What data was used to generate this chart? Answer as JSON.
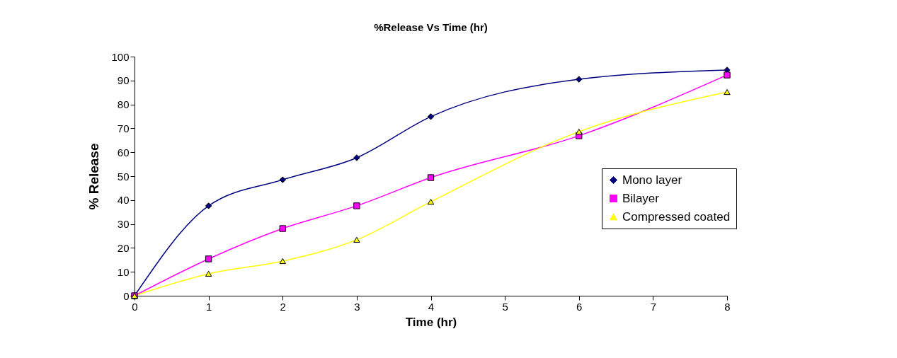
{
  "chart_data": {
    "type": "line",
    "title": "%Release Vs Time (hr)",
    "xlabel": "Time (hr)",
    "ylabel": "% Release",
    "x": [
      0,
      1,
      2,
      3,
      4,
      6,
      8
    ],
    "series": [
      {
        "name": "Mono layer",
        "color": "#000080",
        "marker": "diamond",
        "values": [
          0,
          37.6,
          48.5,
          57.7,
          74.9,
          90.5,
          94.4
        ]
      },
      {
        "name": "Bilayer",
        "color": "#ff00ff",
        "marker": "square",
        "values": [
          0,
          15.4,
          28.1,
          37.6,
          49.4,
          66.9,
          92.3
        ]
      },
      {
        "name": "Compressed coated",
        "color": "#ffff00",
        "marker": "triangle",
        "values": [
          0,
          9.2,
          14.5,
          23.4,
          39.3,
          68.6,
          85.2
        ]
      }
    ],
    "xlim": [
      0,
      8
    ],
    "xticks": [
      0,
      1,
      2,
      3,
      4,
      5,
      6,
      7,
      8
    ],
    "ylim": [
      0,
      100
    ],
    "yticks": [
      0,
      10,
      20,
      30,
      40,
      50,
      60,
      70,
      80,
      90,
      100
    ],
    "grid": false,
    "legend": "right",
    "line_style": "solid"
  }
}
